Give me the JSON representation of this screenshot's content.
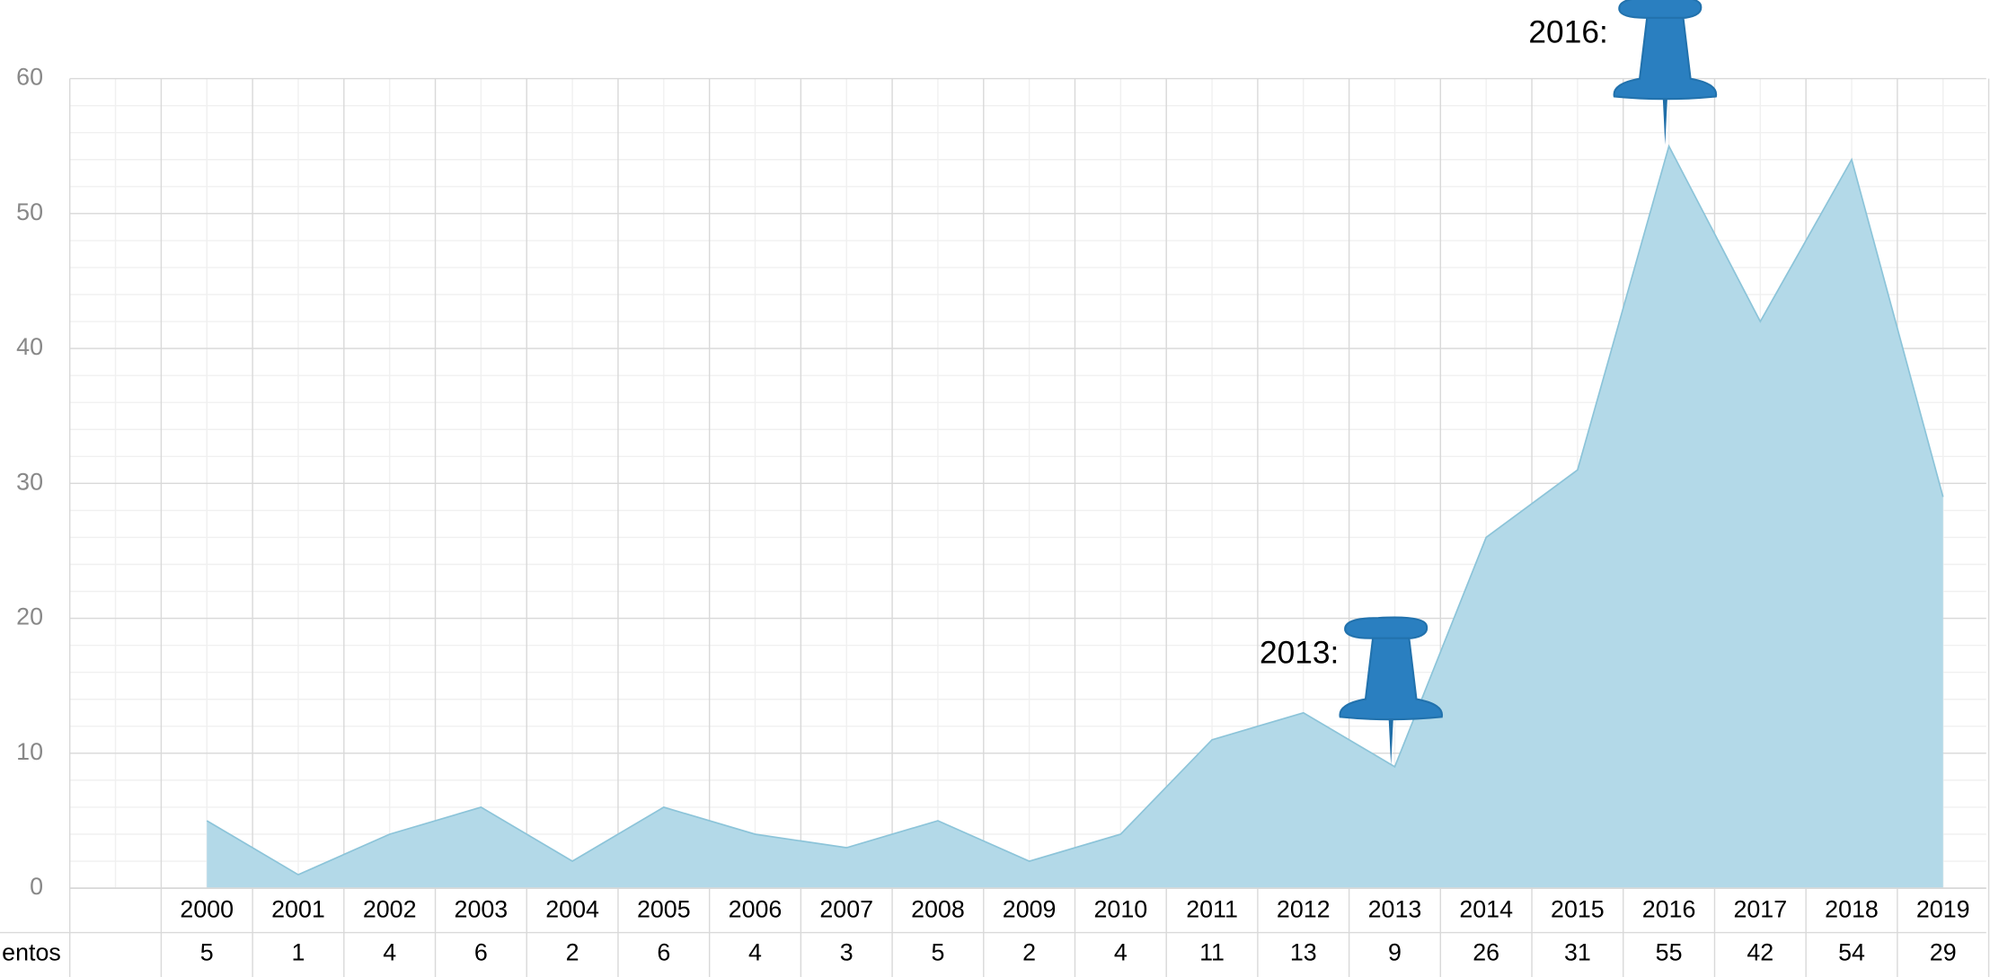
{
  "chart_data": {
    "type": "area",
    "categories": [
      "2000",
      "2001",
      "2002",
      "2003",
      "2004",
      "2005",
      "2006",
      "2007",
      "2008",
      "2009",
      "2010",
      "2011",
      "2012",
      "2013",
      "2014",
      "2015",
      "2016",
      "2017",
      "2018",
      "2019"
    ],
    "series_label": "entos",
    "values": [
      5,
      1,
      4,
      6,
      2,
      6,
      4,
      3,
      5,
      2,
      4,
      11,
      13,
      9,
      26,
      31,
      55,
      42,
      54,
      29
    ],
    "color": "#b3d9e8",
    "line_color": "#8cc4d9",
    "ylim": [
      0,
      60
    ],
    "yticks": [
      0,
      10,
      20,
      30,
      40,
      50,
      60
    ],
    "grid": true,
    "annotations": [
      "2013:",
      "2016:"
    ]
  }
}
